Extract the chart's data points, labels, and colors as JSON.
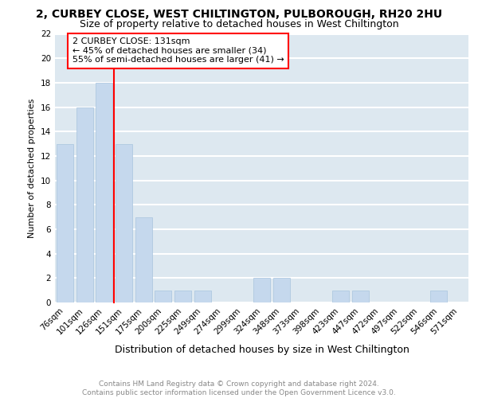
{
  "title1": "2, CURBEY CLOSE, WEST CHILTINGTON, PULBOROUGH, RH20 2HU",
  "title2": "Size of property relative to detached houses in West Chiltington",
  "xlabel": "Distribution of detached houses by size in West Chiltington",
  "ylabel": "Number of detached properties",
  "categories": [
    "76sqm",
    "101sqm",
    "126sqm",
    "151sqm",
    "175sqm",
    "200sqm",
    "225sqm",
    "249sqm",
    "274sqm",
    "299sqm",
    "324sqm",
    "348sqm",
    "373sqm",
    "398sqm",
    "423sqm",
    "447sqm",
    "472sqm",
    "497sqm",
    "522sqm",
    "546sqm",
    "571sqm"
  ],
  "values": [
    13,
    16,
    18,
    13,
    7,
    1,
    1,
    1,
    0,
    0,
    2,
    2,
    0,
    0,
    1,
    1,
    0,
    0,
    0,
    1,
    0
  ],
  "bar_color": "#c5d8ed",
  "bar_edge_color": "#a8c4de",
  "annotation_line1": "2 CURBEY CLOSE: 131sqm",
  "annotation_line2": "← 45% of detached houses are smaller (34)",
  "annotation_line3": "55% of semi-detached houses are larger (41) →",
  "annotation_box_facecolor": "white",
  "annotation_box_edgecolor": "red",
  "vline_color": "red",
  "vline_x_index": 2,
  "ylim": [
    0,
    22
  ],
  "yticks": [
    0,
    2,
    4,
    6,
    8,
    10,
    12,
    14,
    16,
    18,
    20,
    22
  ],
  "footnote": "Contains HM Land Registry data © Crown copyright and database right 2024.\nContains public sector information licensed under the Open Government Licence v3.0.",
  "bg_color": "#dde8f0",
  "grid_color": "white",
  "title1_fontsize": 10,
  "title2_fontsize": 9,
  "xlabel_fontsize": 9,
  "ylabel_fontsize": 8,
  "tick_fontsize": 7.5,
  "annotation_fontsize": 8,
  "footnote_fontsize": 6.5,
  "footnote_color": "#888888"
}
